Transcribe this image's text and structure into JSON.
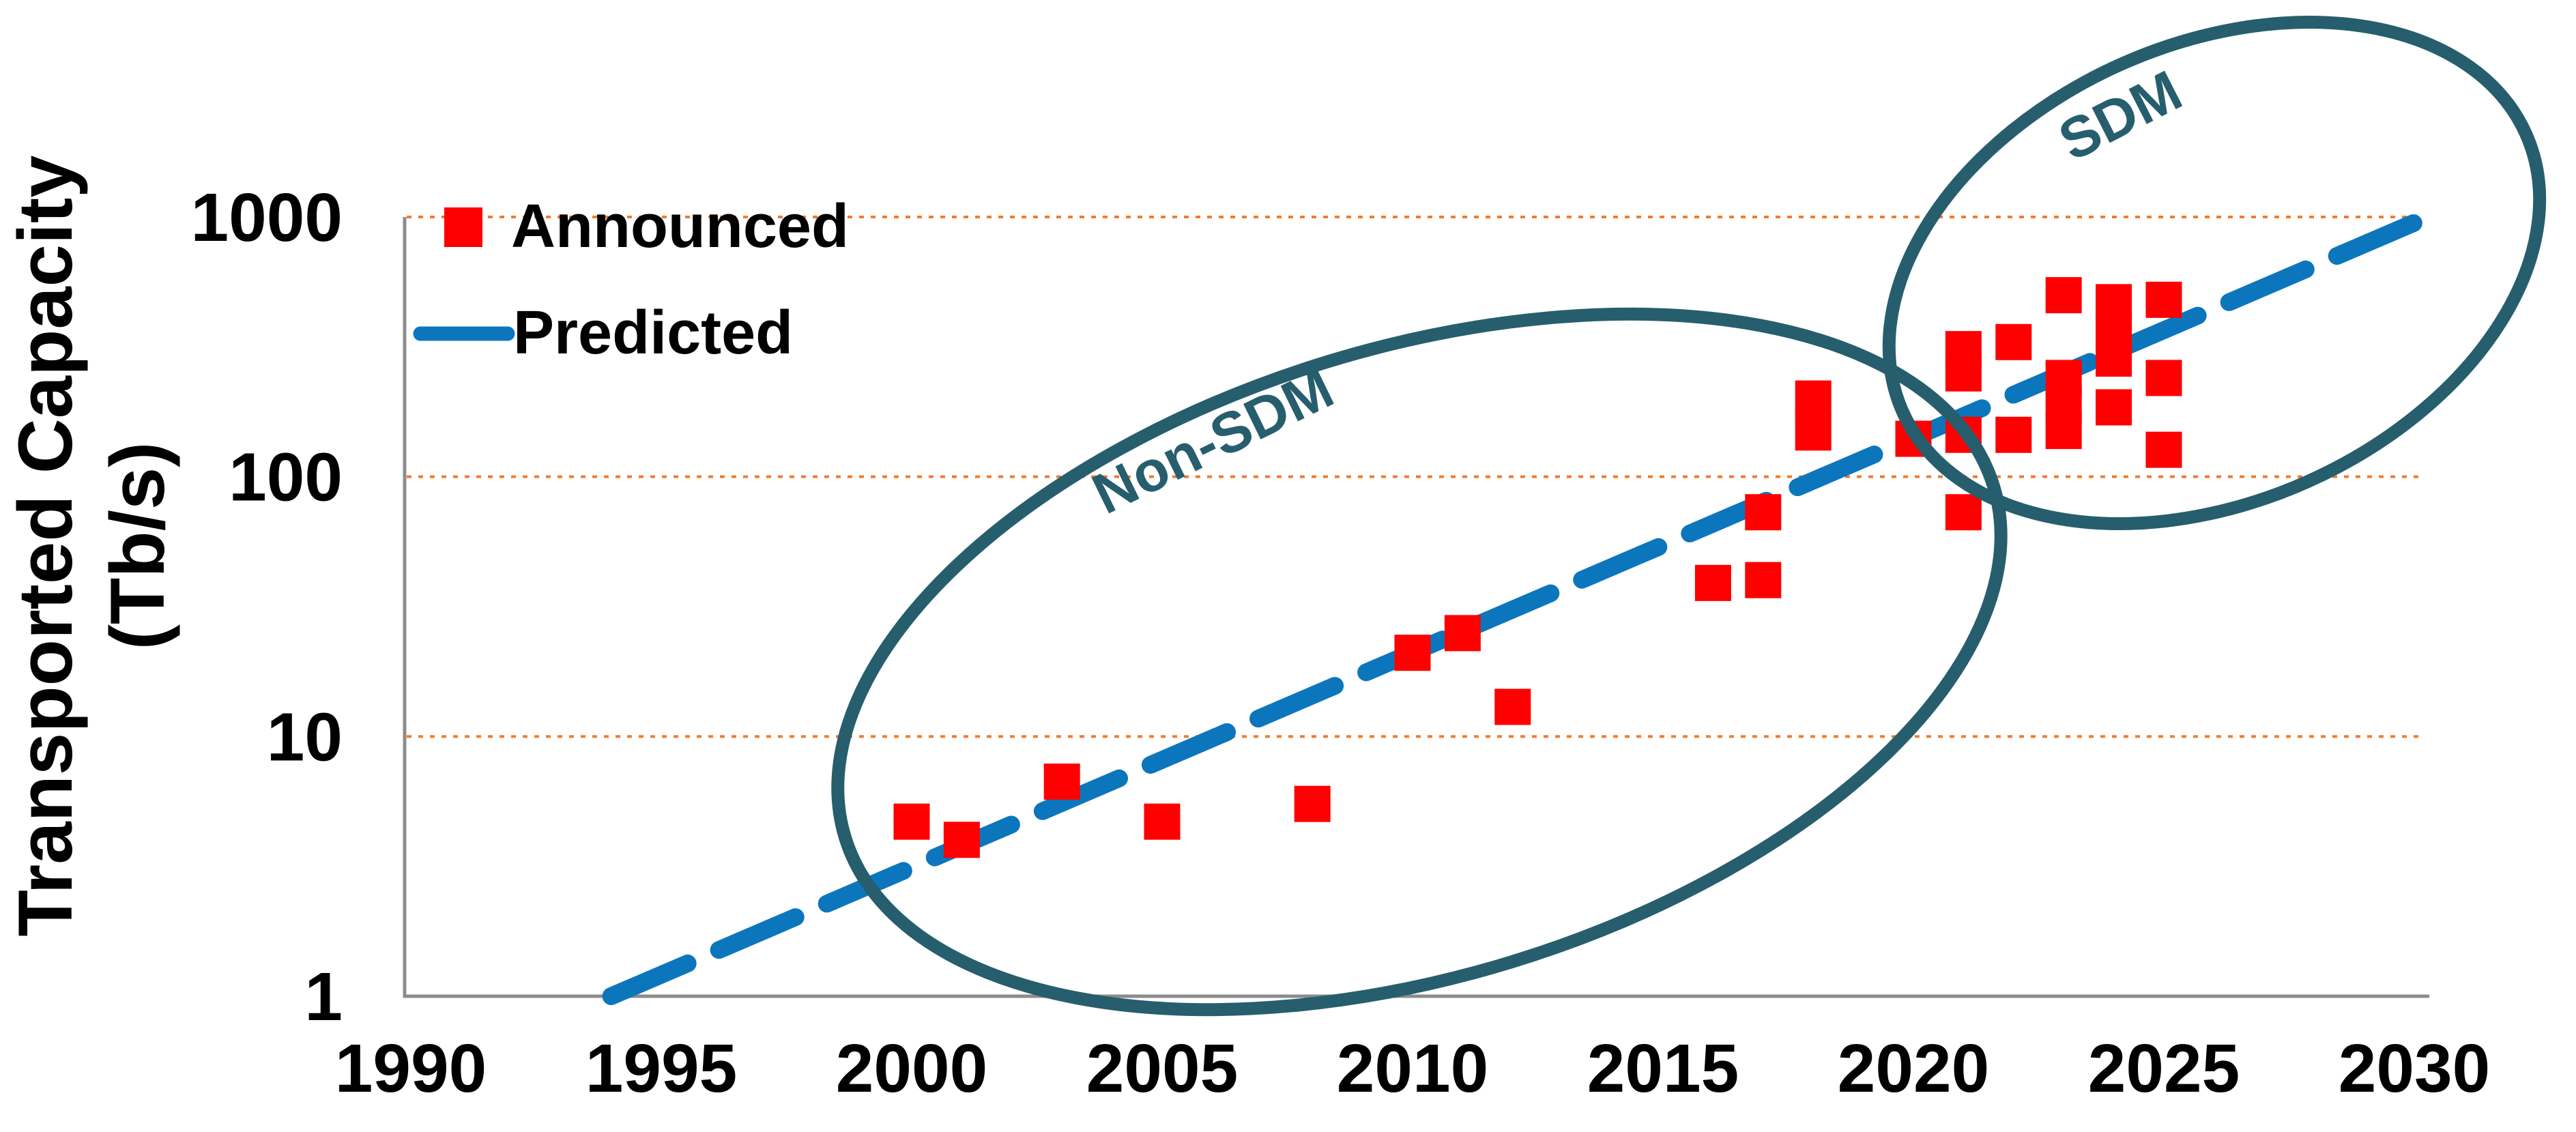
{
  "chart_data": {
    "type": "scatter",
    "title": "",
    "y_axis": {
      "label_line1": "Transported Capacity",
      "label_line2": "(Tb/s)",
      "scale": "log",
      "ticks": [
        "1000",
        "100",
        "10",
        "1"
      ],
      "tick_values": [
        1000,
        100,
        10,
        1
      ],
      "range": [
        1,
        1500
      ]
    },
    "x_axis": {
      "ticks": [
        "1990",
        "1995",
        "2000",
        "2005",
        "2010",
        "2015",
        "2020",
        "2025",
        "2030"
      ],
      "tick_values": [
        1990,
        1995,
        2000,
        2005,
        2010,
        2015,
        2020,
        2025,
        2030
      ],
      "range": [
        1990,
        2030
      ]
    },
    "gridlines": {
      "y_values": [
        1000,
        100,
        10
      ],
      "style": "dotted",
      "color": "#ed7d31"
    },
    "legend": {
      "position": "top-left-inside",
      "items": [
        {
          "label": "Announced",
          "marker": "square",
          "color": "#ff0000"
        },
        {
          "label": "Predicted",
          "marker": "dashed-line",
          "color": "#0c76bc"
        }
      ]
    },
    "series": [
      {
        "name": "Announced",
        "type": "scatter",
        "marker": "square",
        "color": "#ff0000",
        "points": [
          [
            2000,
            4.7
          ],
          [
            2001,
            4.0
          ],
          [
            2003,
            6.7
          ],
          [
            2005,
            4.7
          ],
          [
            2008,
            5.5
          ],
          [
            2010,
            21
          ],
          [
            2011,
            25
          ],
          [
            2012,
            13
          ],
          [
            2016,
            39
          ],
          [
            2017,
            40
          ],
          [
            2017,
            73
          ],
          [
            2018,
            148
          ],
          [
            2018,
            200
          ],
          [
            2020,
            140
          ],
          [
            2021,
            73
          ],
          [
            2021,
            145
          ],
          [
            2021,
            250
          ],
          [
            2021,
            310
          ],
          [
            2022,
            145
          ],
          [
            2022,
            330
          ],
          [
            2023,
            150
          ],
          [
            2023,
            190
          ],
          [
            2023,
            240
          ],
          [
            2023,
            500
          ],
          [
            2024,
            185
          ],
          [
            2024,
            285
          ],
          [
            2024,
            360
          ],
          [
            2024,
            470
          ],
          [
            2025,
            127
          ],
          [
            2025,
            240
          ],
          [
            2025,
            480
          ]
        ]
      },
      {
        "name": "Predicted",
        "type": "line",
        "style": "dashed",
        "color": "#0c76bc",
        "points": [
          [
            1994,
            1
          ],
          [
            2030,
            950
          ]
        ]
      }
    ],
    "annotations": [
      {
        "text": "Non-SDM",
        "color": "#265e6e",
        "label_x": 1790,
        "label_y": 672,
        "label_rotation": -26,
        "ellipse": {
          "cx": 2080,
          "cy": 970,
          "rx": 880,
          "ry": 460,
          "rotation": -17
        }
      },
      {
        "text": "SDM",
        "color": "#265e6e",
        "label_x": 3120,
        "label_y": 195,
        "label_rotation": -27,
        "ellipse": {
          "cx": 3245,
          "cy": 400,
          "rx": 500,
          "ry": 335,
          "rotation": -24
        }
      }
    ]
  },
  "colors": {
    "marker": "#ff0000",
    "predicted_line": "#0c76bc",
    "ellipse": "#265e6e",
    "gridline": "#ed7d31",
    "axis": "#8c8c8c",
    "text": "#000000",
    "background": "#ffffff"
  }
}
